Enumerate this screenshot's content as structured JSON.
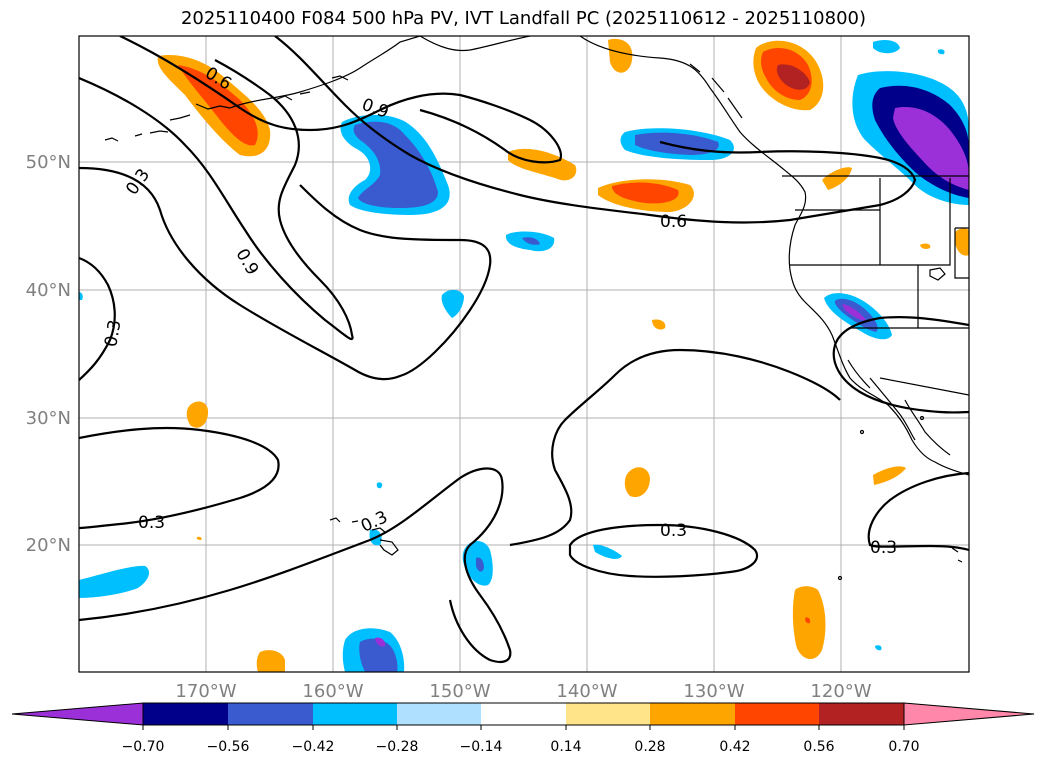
{
  "title": "2025110400 F084 500 hPa PV, IVT Landfall PC (2025110612 - 2025110800)",
  "lon_labels": [
    "170°W",
    "160°W",
    "150°W",
    "140°W",
    "130°W",
    "120°W"
  ],
  "lat_labels": [
    "50°N",
    "40°N",
    "30°N",
    "20°N"
  ],
  "contour_labels": [
    "0.6",
    "0.9",
    "0.3",
    "0.9",
    "0.3",
    "0.6",
    "0.3",
    "0.3",
    "0.3",
    "0.3"
  ],
  "colorbar": {
    "ticks": [
      "−0.70",
      "−0.56",
      "−0.42",
      "−0.28",
      "−0.14",
      "0.14",
      "0.28",
      "0.42",
      "0.56",
      "0.70"
    ],
    "colors": [
      "#9b30d9",
      "#00008b",
      "#3a5bd0",
      "#00bfff",
      "#b0e0ff",
      "#ffffff",
      "#ffe48a",
      "#ffa500",
      "#ff4500",
      "#b22222",
      "#ff88aa"
    ]
  },
  "colors": {
    "gridline": "#b0b0b0",
    "contour": "#000000",
    "tick_text": "#808080"
  }
}
